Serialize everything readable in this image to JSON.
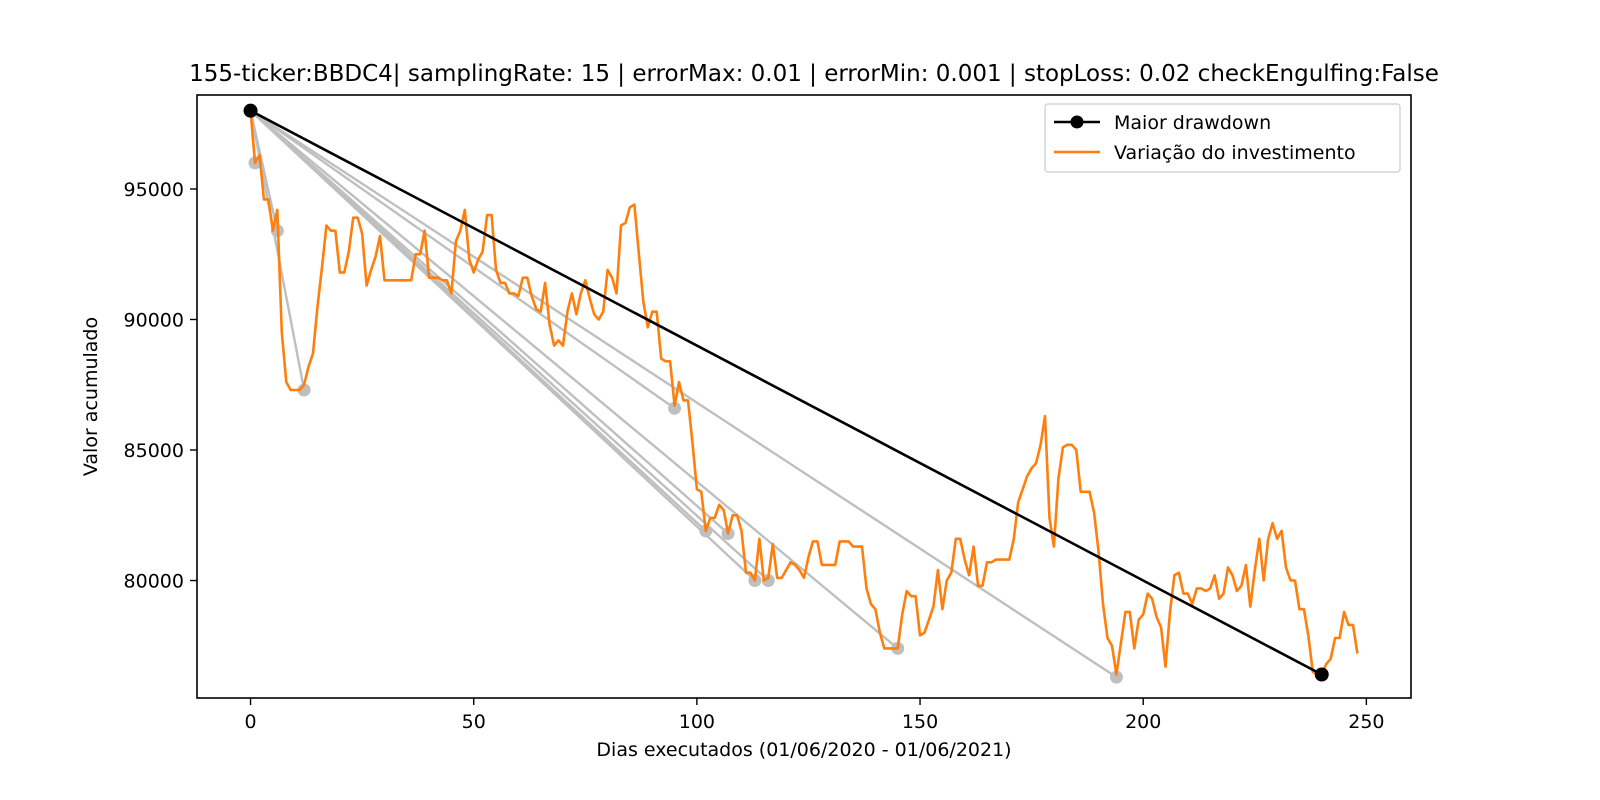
{
  "chart_data": {
    "type": "line",
    "title": "155-ticker:BBDC4| samplingRate: 15 | errorMax: 0.01 | errorMin: 0.001 | stopLoss: 0.02 checkEngulfing:False",
    "xlabel": "Dias executados (01/06/2020 - 01/06/2021)",
    "ylabel": "Valor acumulado",
    "xlim": [
      -12,
      260
    ],
    "ylim": [
      75500,
      98600
    ],
    "xticks": [
      0,
      50,
      100,
      150,
      200,
      250
    ],
    "yticks": [
      80000,
      85000,
      90000,
      95000
    ],
    "grid": false,
    "legend_position": "upper right",
    "series": [
      {
        "name": "Maior drawdown",
        "color": "#000000",
        "marker": "circle",
        "x": [
          0,
          240
        ],
        "y": [
          98000,
          76400
        ]
      },
      {
        "name": "Variação do investimento",
        "color": "#ff7f0e",
        "x": [
          0,
          1,
          2,
          3,
          4,
          5,
          6,
          7,
          8,
          9,
          10,
          11,
          12,
          13,
          14,
          15,
          16,
          17,
          18,
          19,
          20,
          21,
          22,
          23,
          24,
          25,
          26,
          27,
          28,
          29,
          30,
          31,
          32,
          33,
          34,
          35,
          36,
          37,
          38,
          39,
          40,
          41,
          42,
          43,
          44,
          45,
          46,
          47,
          48,
          49,
          50,
          51,
          52,
          53,
          54,
          55,
          56,
          57,
          58,
          59,
          60,
          61,
          62,
          63,
          64,
          65,
          66,
          67,
          68,
          69,
          70,
          71,
          72,
          73,
          74,
          75,
          76,
          77,
          78,
          79,
          80,
          81,
          82,
          83,
          84,
          85,
          86,
          87,
          88,
          89,
          90,
          91,
          92,
          93,
          94,
          95,
          96,
          97,
          98,
          99,
          100,
          101,
          102,
          103,
          104,
          105,
          106,
          107,
          108,
          109,
          110,
          111,
          112,
          113,
          114,
          115,
          116,
          117,
          118,
          119,
          120,
          121,
          122,
          123,
          124,
          125,
          126,
          127,
          128,
          129,
          130,
          131,
          132,
          133,
          134,
          135,
          136,
          137,
          138,
          139,
          140,
          141,
          142,
          143,
          144,
          145,
          146,
          147,
          148,
          149,
          150,
          151,
          152,
          153,
          154,
          155,
          156,
          157,
          158,
          159,
          160,
          161,
          162,
          163,
          164,
          165,
          166,
          167,
          168,
          169,
          170,
          171,
          172,
          173,
          174,
          175,
          176,
          177,
          178,
          179,
          180,
          181,
          182,
          183,
          184,
          185,
          186,
          187,
          188,
          189,
          190,
          191,
          192,
          193,
          194,
          195,
          196,
          197,
          198,
          199,
          200,
          201,
          202,
          203,
          204,
          205,
          206,
          207,
          208,
          209,
          210,
          211,
          212,
          213,
          214,
          215,
          216,
          217,
          218,
          219,
          220,
          221,
          222,
          223,
          224,
          225,
          226,
          227,
          228,
          229,
          230,
          231,
          232,
          233,
          234,
          235,
          236,
          237,
          238,
          239,
          240,
          241,
          242,
          243,
          244,
          245,
          246,
          247,
          248
        ],
        "y": [
          98000,
          96000,
          96300,
          94600,
          94600,
          93400,
          94200,
          89500,
          87600,
          87300,
          87300,
          87300,
          87500,
          88200,
          88700,
          90500,
          92000,
          93600,
          93400,
          93400,
          91800,
          91800,
          92600,
          93900,
          93900,
          93300,
          91300,
          91900,
          92400,
          93200,
          91500,
          91500,
          91500,
          91500,
          91500,
          91500,
          91500,
          92500,
          92500,
          93400,
          91600,
          91600,
          91600,
          91500,
          91500,
          91000,
          93000,
          93400,
          94200,
          92300,
          91800,
          92300,
          92600,
          94000,
          94000,
          91900,
          91400,
          91400,
          91000,
          91000,
          90900,
          91600,
          91600,
          90900,
          90400,
          90300,
          91400,
          89800,
          89000,
          89200,
          89000,
          90300,
          91000,
          90200,
          91000,
          91500,
          90800,
          90200,
          90000,
          90300,
          91900,
          91600,
          91000,
          93600,
          93700,
          94300,
          94400,
          92500,
          90700,
          89700,
          90300,
          90300,
          88500,
          88400,
          88400,
          86700,
          87600,
          86900,
          86900,
          85300,
          83500,
          83400,
          81900,
          82400,
          82400,
          82900,
          82700,
          81800,
          82500,
          82500,
          81900,
          80300,
          80300,
          80000,
          81600,
          80000,
          80100,
          81400,
          80100,
          80100,
          80400,
          80700,
          80600,
          80400,
          80100,
          80900,
          81500,
          81500,
          80600,
          80600,
          80600,
          80600,
          81500,
          81500,
          81500,
          81300,
          81300,
          81300,
          79700,
          79100,
          78900,
          78000,
          77400,
          77400,
          77400,
          77400,
          78700,
          79600,
          79400,
          79400,
          77900,
          78000,
          78500,
          79000,
          80400,
          78900,
          80000,
          80300,
          81600,
          81600,
          80800,
          80200,
          81300,
          79800,
          79800,
          80700,
          80700,
          80800,
          80800,
          80800,
          80800,
          81600,
          83000,
          83500,
          84000,
          84300,
          84500,
          85200,
          86300,
          82400,
          81300,
          83900,
          85100,
          85200,
          85200,
          85000,
          83400,
          83400,
          83400,
          82600,
          81100,
          79100,
          77800,
          77500,
          76400,
          77600,
          78800,
          78800,
          77400,
          78500,
          78700,
          79500,
          79300,
          78600,
          78200,
          76700,
          78800,
          80200,
          80300,
          79500,
          79500,
          79100,
          79700,
          79700,
          79600,
          79700,
          80200,
          79300,
          79500,
          80500,
          80200,
          79600,
          79800,
          80600,
          79000,
          80400,
          81600,
          80000,
          81600,
          82200,
          81600,
          81900,
          80500,
          80000,
          80000,
          78900,
          78900,
          77900,
          76500,
          76400,
          76400,
          76800,
          77000,
          77800,
          77800,
          78800,
          78300,
          78300,
          77200
        ]
      }
    ],
    "drawdown_candidates": {
      "color": "#bfbfbf",
      "start": [
        0,
        98000
      ],
      "points": [
        {
          "x": 1,
          "y": 96000
        },
        {
          "x": 6,
          "y": 93400
        },
        {
          "x": 12,
          "y": 87300
        },
        {
          "x": 95,
          "y": 86600
        },
        {
          "x": 102,
          "y": 81900
        },
        {
          "x": 107,
          "y": 81800
        },
        {
          "x": 113,
          "y": 80000
        },
        {
          "x": 116,
          "y": 80000
        },
        {
          "x": 145,
          "y": 77400
        },
        {
          "x": 194,
          "y": 76300
        }
      ]
    },
    "legend": [
      {
        "label": "Maior drawdown"
      },
      {
        "label": "Variação do investimento"
      }
    ]
  }
}
